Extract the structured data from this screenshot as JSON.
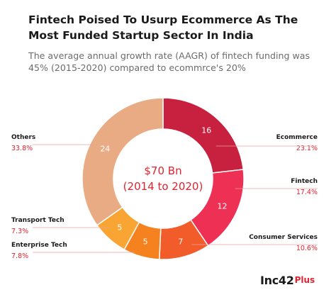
{
  "title": "Fintech Poised To Usurp Ecommerce As The Most Funded Startup Sector In India",
  "subtitle": "The average annual growth rate (AAGR) of fintech funding was 45% (2015-2020) compared to ecommrce's 20%",
  "chart_data": {
    "type": "pie",
    "donut": true,
    "center_label": [
      "$70 Bn",
      "(2014 to 2020)"
    ],
    "legend_placement": "outside labels with leader lines",
    "slices": [
      {
        "label": "Ecommerce",
        "value": 16,
        "percent": "23.1%",
        "color": "#c8203f"
      },
      {
        "label": "Fintech",
        "value": 12,
        "percent": "17.4%",
        "color": "#ef3055"
      },
      {
        "label": "Consumer Services",
        "value": 7,
        "percent": "10.6%",
        "color": "#f25c2a"
      },
      {
        "label": "Enterprise Tech",
        "value": 5,
        "percent": "7.8%",
        "color": "#f5821f"
      },
      {
        "label": "Transport Tech",
        "value": 5,
        "percent": "7.3%",
        "color": "#f9a533"
      },
      {
        "label": "Others",
        "value": 24,
        "percent": "33.8%",
        "color": "#e9ab83"
      }
    ]
  },
  "colors": {
    "label_text": "#1a1a1a",
    "percent_text": "#e0242f",
    "leader_line": "#e8a0a0",
    "center_text": "#e0242f"
  },
  "brand": {
    "name": "Inc42",
    "suffix": "Plus"
  }
}
